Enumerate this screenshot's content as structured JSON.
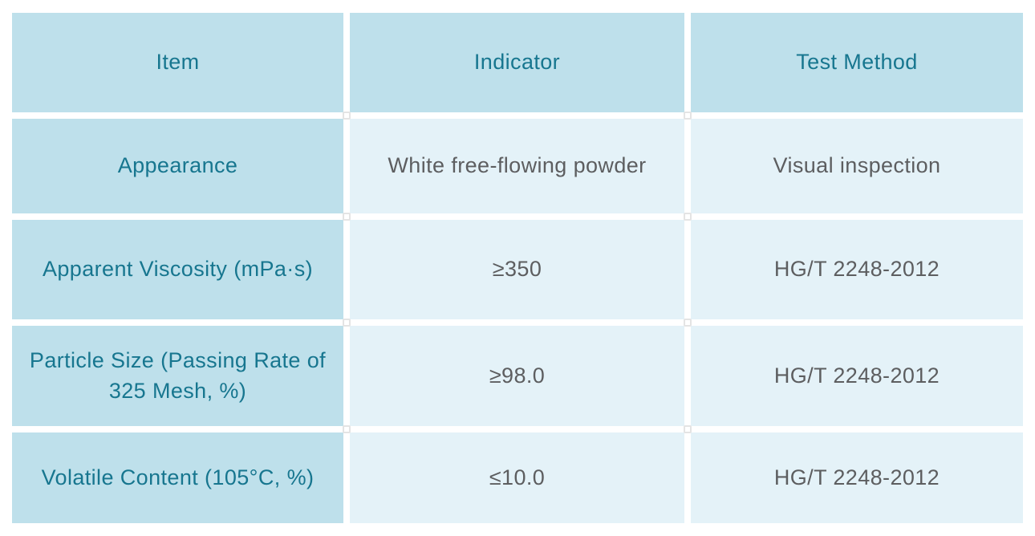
{
  "colors": {
    "cell_blue": "#bee0eb",
    "cell_light": "#e4f2f8",
    "teal_text": "#17768f",
    "gray_text": "#5d5e60",
    "dot_border": "#e4e4e4",
    "page_bg": "#ffffff"
  },
  "table": {
    "columns": [
      "Item",
      "Indicator",
      "Test Method"
    ],
    "rows": [
      {
        "item": "Appearance",
        "indicator": "White free-flowing powder",
        "test_method": "Visual inspection"
      },
      {
        "item": "Apparent Viscosity (mPa·s)",
        "indicator": "≥350",
        "test_method": "HG/T 2248-2012"
      },
      {
        "item": "Particle Size (Passing Rate of 325 Mesh, %)",
        "indicator": "≥98.0",
        "test_method": "HG/T 2248-2012"
      },
      {
        "item": "Volatile Content (105°C, %)",
        "indicator": "≤10.0",
        "test_method": "HG/T 2248-2012"
      }
    ]
  }
}
